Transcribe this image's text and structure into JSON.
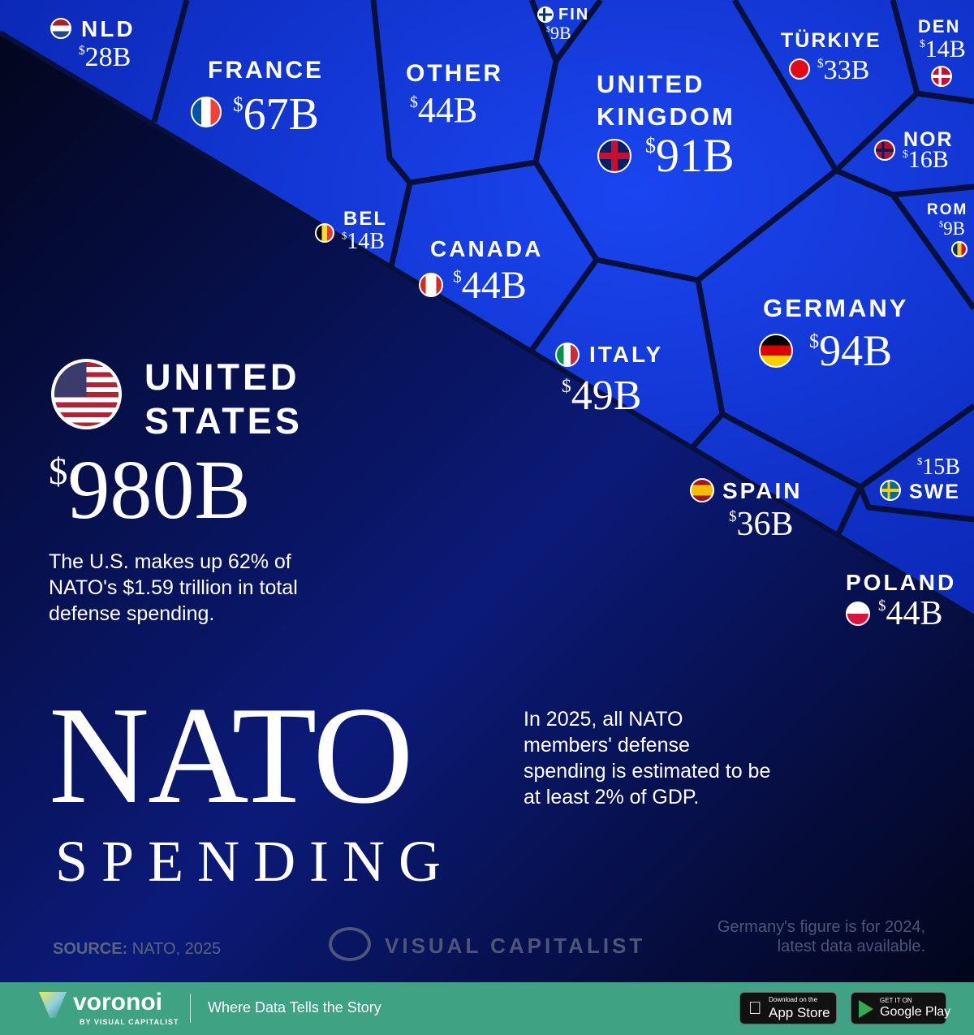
{
  "chart_data": {
    "type": "voronoi",
    "title": "NATO SPENDING",
    "unit": "$B",
    "items": [
      {
        "name": "UNITED STATES",
        "value": 980,
        "label": "980B"
      },
      {
        "name": "GERMANY",
        "value": 94,
        "label": "94B"
      },
      {
        "name": "UNITED KINGDOM",
        "value": 91,
        "label": "91B"
      },
      {
        "name": "FRANCE",
        "value": 67,
        "label": "67B"
      },
      {
        "name": "ITALY",
        "value": 49,
        "label": "49B"
      },
      {
        "name": "OTHER",
        "value": 44,
        "label": "44B"
      },
      {
        "name": "CANADA",
        "value": 44,
        "label": "44B"
      },
      {
        "name": "POLAND",
        "value": 44,
        "label": "44B"
      },
      {
        "name": "SPAIN",
        "value": 36,
        "label": "36B"
      },
      {
        "name": "TÜRKIYE",
        "value": 33,
        "label": "33B"
      },
      {
        "name": "NLD",
        "value": 28,
        "label": "28B"
      },
      {
        "name": "NOR",
        "value": 16,
        "label": "16B"
      },
      {
        "name": "SWE",
        "value": 15,
        "label": "15B"
      },
      {
        "name": "BEL",
        "value": 14,
        "label": "14B"
      },
      {
        "name": "DEN",
        "value": 14,
        "label": "14B"
      },
      {
        "name": "FIN",
        "value": 9,
        "label": "9B"
      },
      {
        "name": "ROM",
        "value": 9,
        "label": "9B"
      }
    ],
    "currency": "$",
    "colors": {
      "cells": "#1436d6",
      "background": "#050a24",
      "footer": "#3fa282"
    }
  },
  "us_note": "The U.S. makes up 62% of NATO's $1.59 trillion in total defense spending.",
  "title_main": "NATO",
  "title_sub": "SPENDING",
  "side_note": "In 2025, all NATO members' defense spending is estimated to be at least 2% of GDP.",
  "source_label": "SOURCE:",
  "source_value": "NATO, 2025",
  "brand": "VISUAL CAPITALIST",
  "germany_note": "Germany's figure is for 2024, latest data available.",
  "footer": {
    "logo": "voronoi",
    "logo_sub": "BY VISUAL CAPITALIST",
    "tagline": "Where Data Tells the Story",
    "appstore_small": "Download on the",
    "appstore": "App Store",
    "gplay_small": "GET IT ON",
    "gplay": "Google Play"
  }
}
